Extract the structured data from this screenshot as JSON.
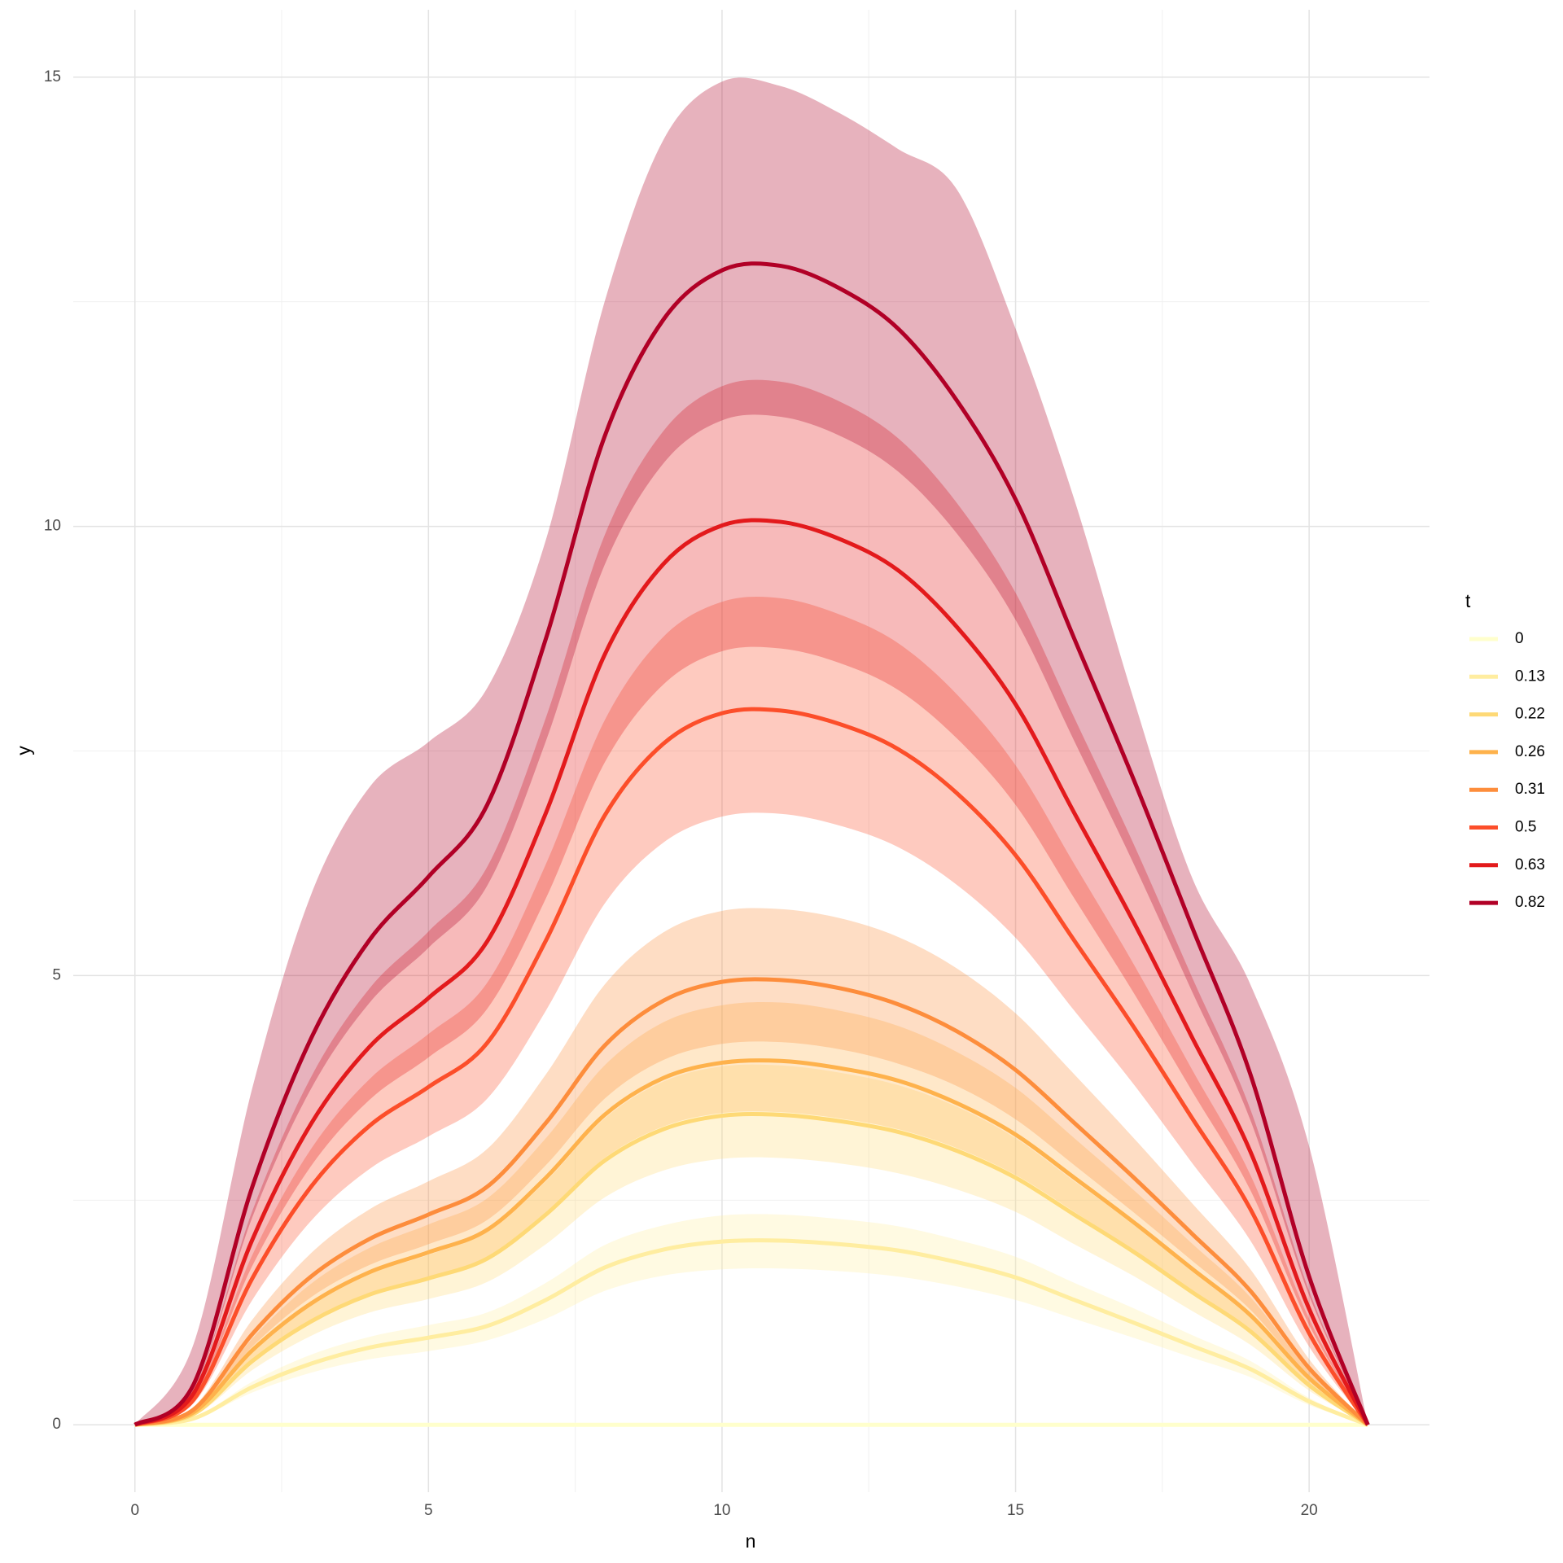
{
  "chart_data": {
    "type": "line",
    "x_label": "n",
    "y_label": "y",
    "legend_title": "t",
    "legend_position": "right",
    "grid": true,
    "ribbon_opacity": 0.3,
    "x": [
      0,
      1,
      2,
      3,
      4,
      5,
      6,
      7,
      8,
      9,
      10,
      11,
      12,
      13,
      14,
      15,
      16,
      17,
      18,
      19,
      20,
      21
    ],
    "xlim": [
      -1.05,
      22.05
    ],
    "xticks": [
      0,
      5,
      10,
      15,
      20
    ],
    "xminorticks": [
      2.5,
      7.5,
      12.5,
      17.5
    ],
    "ylim": [
      -0.75,
      15.75
    ],
    "yticks": [
      0,
      5,
      10,
      15
    ],
    "yminorticks": [
      2.5,
      7.5,
      12.5
    ],
    "series": [
      {
        "name": "0",
        "color": "#ffffcc",
        "values": [
          0,
          0,
          0,
          0,
          0,
          0,
          0,
          0,
          0,
          0,
          0,
          0,
          0,
          0,
          0,
          0,
          0,
          0,
          0,
          0,
          0,
          0
        ]
      },
      {
        "name": "0.13",
        "color": "#ffeda0",
        "values": [
          0,
          0.07,
          0.42,
          0.68,
          0.86,
          0.97,
          1.1,
          1.39,
          1.75,
          1.95,
          2.04,
          2.05,
          2.01,
          1.94,
          1.81,
          1.64,
          1.39,
          1.14,
          0.88,
          0.62,
          0.26,
          0
        ],
        "lower": [
          0,
          0.06,
          0.36,
          0.58,
          0.73,
          0.82,
          0.94,
          1.18,
          1.49,
          1.66,
          1.73,
          1.74,
          1.71,
          1.65,
          1.54,
          1.39,
          1.18,
          0.97,
          0.75,
          0.53,
          0.22,
          0
        ],
        "upper": [
          0,
          0.08,
          0.48,
          0.78,
          0.98,
          1.11,
          1.25,
          1.58,
          2.0,
          2.22,
          2.33,
          2.34,
          2.29,
          2.21,
          2.06,
          1.87,
          1.58,
          1.3,
          1.0,
          0.71,
          0.3,
          0
        ]
      },
      {
        "name": "0.22",
        "color": "#fed976",
        "values": [
          0,
          0.12,
          0.71,
          1.15,
          1.45,
          1.63,
          1.85,
          2.34,
          2.94,
          3.29,
          3.44,
          3.45,
          3.38,
          3.26,
          3.05,
          2.75,
          2.34,
          1.93,
          1.48,
          1.04,
          0.44,
          0
        ],
        "lower": [
          0,
          0.1,
          0.61,
          0.99,
          1.25,
          1.4,
          1.59,
          2.01,
          2.53,
          2.83,
          2.96,
          2.97,
          2.91,
          2.8,
          2.62,
          2.37,
          2.01,
          1.66,
          1.27,
          0.89,
          0.38,
          0
        ],
        "upper": [
          0,
          0.14,
          0.82,
          1.33,
          1.68,
          1.89,
          2.15,
          2.71,
          3.41,
          3.82,
          3.99,
          4.0,
          3.92,
          3.78,
          3.54,
          3.19,
          2.71,
          2.24,
          1.72,
          1.21,
          0.51,
          0
        ]
      },
      {
        "name": "0.26",
        "color": "#feb24c",
        "values": [
          0,
          0.14,
          0.83,
          1.35,
          1.7,
          1.92,
          2.17,
          2.75,
          3.45,
          3.86,
          4.03,
          4.05,
          3.97,
          3.83,
          3.58,
          3.23,
          2.75,
          2.26,
          1.74,
          1.22,
          0.52,
          0
        ],
        "lower": [
          0,
          0.12,
          0.71,
          1.16,
          1.46,
          1.65,
          1.87,
          2.37,
          2.97,
          3.32,
          3.47,
          3.48,
          3.41,
          3.29,
          3.08,
          2.78,
          2.37,
          1.94,
          1.5,
          1.05,
          0.45,
          0
        ],
        "upper": [
          0,
          0.16,
          0.96,
          1.57,
          1.97,
          2.23,
          2.52,
          3.19,
          4.0,
          4.48,
          4.67,
          4.7,
          4.61,
          4.44,
          4.15,
          3.75,
          3.19,
          2.62,
          2.02,
          1.42,
          0.6,
          0
        ]
      },
      {
        "name": "0.31",
        "color": "#fd8d3c",
        "values": [
          0,
          0.17,
          1.01,
          1.65,
          2.07,
          2.34,
          2.65,
          3.36,
          4.22,
          4.72,
          4.93,
          4.95,
          4.86,
          4.68,
          4.38,
          3.95,
          3.36,
          2.76,
          2.13,
          1.49,
          0.63,
          0
        ],
        "lower": [
          0,
          0.15,
          0.87,
          1.42,
          1.78,
          2.01,
          2.28,
          2.89,
          3.63,
          4.06,
          4.24,
          4.26,
          4.18,
          4.02,
          3.77,
          3.4,
          2.89,
          2.37,
          1.83,
          1.28,
          0.54,
          0
        ],
        "upper": [
          0,
          0.2,
          1.17,
          1.91,
          2.4,
          2.71,
          3.07,
          3.9,
          4.9,
          5.48,
          5.72,
          5.74,
          5.64,
          5.43,
          5.08,
          4.58,
          3.9,
          3.2,
          2.47,
          1.73,
          0.73,
          0
        ]
      },
      {
        "name": "0.5",
        "color": "#fc4e2a",
        "values": [
          0,
          0.28,
          1.63,
          2.65,
          3.33,
          3.76,
          4.25,
          5.39,
          6.78,
          7.58,
          7.92,
          7.95,
          7.8,
          7.52,
          7.03,
          6.34,
          5.39,
          4.44,
          3.42,
          2.4,
          1.02,
          0
        ],
        "lower": [
          0,
          0.24,
          1.39,
          2.27,
          2.85,
          3.21,
          3.63,
          4.61,
          5.8,
          6.48,
          6.77,
          6.8,
          6.67,
          6.43,
          6.01,
          5.42,
          4.61,
          3.8,
          2.92,
          2.05,
          0.87,
          0
        ],
        "upper": [
          0,
          0.32,
          1.89,
          3.07,
          3.85,
          4.35,
          4.92,
          6.24,
          7.84,
          8.77,
          9.16,
          9.2,
          9.02,
          8.7,
          8.13,
          7.34,
          6.24,
          5.14,
          3.96,
          2.78,
          1.18,
          0
        ]
      },
      {
        "name": "0.63",
        "color": "#e31a1c",
        "values": [
          0,
          0.35,
          2.06,
          3.35,
          4.21,
          4.75,
          5.38,
          6.81,
          8.57,
          9.58,
          10.01,
          10.05,
          9.86,
          9.51,
          8.88,
          8.02,
          6.81,
          5.61,
          4.32,
          3.04,
          1.29,
          0
        ],
        "lower": [
          0,
          0.3,
          1.77,
          2.88,
          3.62,
          4.09,
          4.63,
          5.86,
          7.37,
          8.24,
          8.61,
          8.64,
          8.48,
          8.18,
          7.64,
          6.9,
          5.86,
          4.82,
          3.72,
          2.61,
          1.11,
          0
        ],
        "upper": [
          0,
          0.4,
          2.38,
          3.87,
          4.86,
          5.49,
          6.21,
          7.87,
          9.9,
          11.06,
          11.56,
          11.61,
          11.39,
          10.98,
          10.26,
          9.26,
          7.87,
          6.48,
          4.99,
          3.51,
          1.49,
          0
        ]
      },
      {
        "name": "0.82",
        "color": "#b10026",
        "values": [
          0,
          0.45,
          2.65,
          4.3,
          5.4,
          6.1,
          6.9,
          8.75,
          11.0,
          12.3,
          12.85,
          12.9,
          12.65,
          12.2,
          11.4,
          10.3,
          8.75,
          7.2,
          5.55,
          3.9,
          1.65,
          0
        ],
        "lower": [
          0,
          0.39,
          2.31,
          3.74,
          4.7,
          5.31,
          6.0,
          7.61,
          9.57,
          10.7,
          11.18,
          11.22,
          11.01,
          10.61,
          9.92,
          8.96,
          7.61,
          6.26,
          4.83,
          3.39,
          1.44,
          0
        ],
        "upper": [
          0,
          0.9,
          3.75,
          5.9,
          7.1,
          7.6,
          8.2,
          9.85,
          12.5,
          14.3,
          14.95,
          14.9,
          14.6,
          14.2,
          13.75,
          12.2,
          10.3,
          8.1,
          6.1,
          4.9,
          3.1,
          0
        ]
      }
    ]
  }
}
